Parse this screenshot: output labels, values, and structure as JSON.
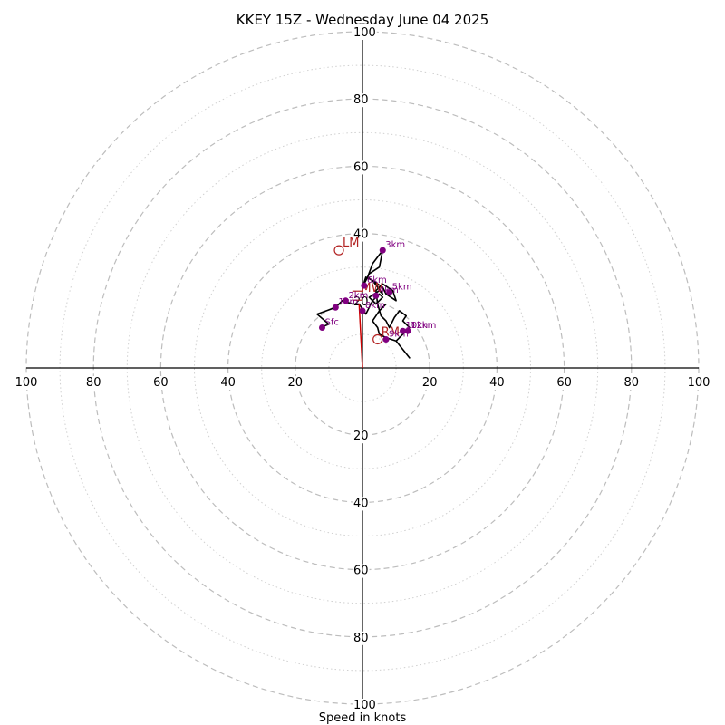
{
  "chart_data": {
    "type": "scatter",
    "subtype": "hodograph",
    "title": "KKEY 15Z - Wednesday June 04 2025",
    "xlabel": "Speed in knots",
    "ylabel": "",
    "xlim": [
      -100,
      100
    ],
    "ylim": [
      -100,
      100
    ],
    "major_rings": [
      20,
      40,
      60,
      80,
      100
    ],
    "minor_rings": [
      10,
      30,
      50,
      70,
      90
    ],
    "tick_labels": [
      20,
      40,
      60,
      80,
      100
    ],
    "grid": true,
    "hodograph_trace": [
      [
        -12.5,
        12
      ],
      [
        -10,
        13
      ],
      [
        -13.5,
        16
      ],
      [
        -8,
        18
      ],
      [
        -6,
        20
      ],
      [
        -3,
        19
      ],
      [
        -1,
        19
      ],
      [
        1,
        16
      ],
      [
        3,
        20
      ],
      [
        5,
        22
      ],
      [
        6,
        21
      ],
      [
        4,
        19
      ],
      [
        2,
        21
      ],
      [
        5,
        23
      ],
      [
        6,
        22
      ],
      [
        3,
        26
      ],
      [
        1,
        27
      ],
      [
        0,
        24
      ],
      [
        2,
        28
      ],
      [
        5,
        30
      ],
      [
        6,
        35
      ],
      [
        3,
        31
      ],
      [
        1.5,
        27
      ],
      [
        6,
        24
      ],
      [
        7,
        22
      ],
      [
        10,
        20
      ],
      [
        9,
        23
      ],
      [
        6,
        25
      ],
      [
        4,
        23
      ],
      [
        4.5,
        19
      ],
      [
        5.5,
        15.5
      ],
      [
        7,
        14
      ],
      [
        8,
        12
      ],
      [
        9.5,
        15
      ],
      [
        11,
        17
      ],
      [
        13,
        15.5
      ],
      [
        12,
        14
      ],
      [
        14,
        12
      ],
      [
        12,
        10
      ],
      [
        10,
        8
      ],
      [
        14,
        3
      ],
      [
        10,
        8
      ],
      [
        7,
        9
      ],
      [
        5,
        10
      ],
      [
        4.5,
        12
      ],
      [
        3,
        14
      ],
      [
        5,
        17
      ],
      [
        7,
        19
      ]
    ],
    "height_markers": [
      {
        "label": "Sfc",
        "x": -12,
        "y": 12
      },
      {
        "label": "1km",
        "x": -8,
        "y": 18
      },
      {
        "label": "2km",
        "x": -5,
        "y": 20
      },
      {
        "label": "3km",
        "x": 6,
        "y": 35
      },
      {
        "label": "4km",
        "x": 4,
        "y": 21.5
      },
      {
        "label": "5km",
        "x": 8,
        "y": 22.5
      },
      {
        "label": "6km",
        "x": 0.5,
        "y": 24.5
      },
      {
        "label": "8km",
        "x": 0,
        "y": 17
      },
      {
        "label": "9km",
        "x": 7,
        "y": 8.5
      },
      {
        "label": "10km",
        "x": 12,
        "y": 11
      },
      {
        "label": "12km",
        "x": 13.5,
        "y": 11
      }
    ],
    "storm_motions": [
      {
        "label": "LM",
        "x": -7,
        "y": 35,
        "marker": "circle"
      },
      {
        "label": "RM",
        "x": 4.5,
        "y": 8.5,
        "marker": "circle"
      },
      {
        "label": "MW",
        "x": -1.5,
        "y": 21.5,
        "marker": "square"
      }
    ],
    "shear_vector": {
      "from": [
        0,
        0
      ],
      "to": [
        -1,
        19
      ]
    },
    "colors": {
      "trace": "#000000",
      "height_markers": "#800080",
      "storm_motions": "#b22222",
      "shear_vector": "#cc0000",
      "grid": "#bdbdbd"
    }
  }
}
